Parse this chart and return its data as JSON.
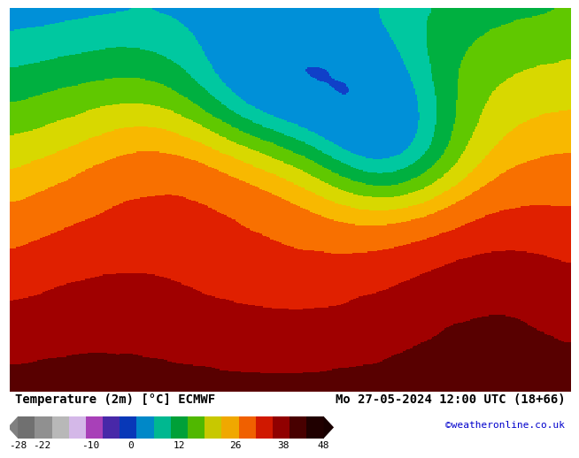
{
  "title_left": "Temperature (2m) [°C] ECMWF",
  "title_right": "Mo 27-05-2024 12:00 UTC (18+66)",
  "credit": "©weatheronline.co.uk",
  "colorbar_values": [
    -28,
    -22,
    -10,
    0,
    12,
    26,
    38,
    48
  ],
  "bg_color": "#ffffff",
  "label_color": "#000000",
  "credit_color": "#0000cc",
  "font_size_title": 10,
  "font_size_ticks": 8,
  "font_size_credit": 8,
  "colorbar_colors": [
    "#808080",
    "#a8a8a8",
    "#c8c8c8",
    "#dcc8f0",
    "#b050c8",
    "#5030b8",
    "#1040c8",
    "#0090d8",
    "#00c8a0",
    "#00b040",
    "#60c800",
    "#d8d800",
    "#f8b800",
    "#f87000",
    "#e02000",
    "#a00000",
    "#580000",
    "#280000"
  ],
  "colorbar_bounds": [
    -35,
    -26,
    -22,
    -13,
    -5,
    -2,
    3,
    8,
    14,
    17,
    20,
    23,
    26,
    29,
    33,
    37,
    41,
    45,
    52
  ]
}
